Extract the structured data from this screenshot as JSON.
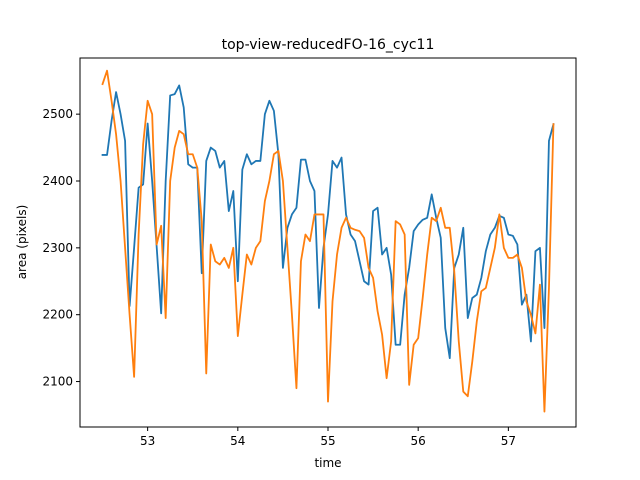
{
  "chart_data": {
    "type": "line",
    "title": "top-view-reducedFO-16_cyc11",
    "xlabel": "time",
    "ylabel": "area (pixels)",
    "xlim": [
      52.25,
      57.75
    ],
    "ylim": [
      2032,
      2584
    ],
    "xticks": [
      53,
      54,
      55,
      56,
      57
    ],
    "yticks": [
      2100,
      2200,
      2300,
      2400,
      2500
    ],
    "grid": false,
    "legend": "none",
    "series": [
      {
        "color": "#1f77b4",
        "points": [
          [
            52.5,
            2439
          ],
          [
            52.55,
            2439
          ],
          [
            52.6,
            2490
          ],
          [
            52.65,
            2533
          ],
          [
            52.7,
            2500
          ],
          [
            52.75,
            2460
          ],
          [
            52.8,
            2213
          ],
          [
            52.85,
            2300
          ],
          [
            52.9,
            2390
          ],
          [
            52.95,
            2395
          ],
          [
            53.0,
            2486
          ],
          [
            53.05,
            2400
          ],
          [
            53.1,
            2302
          ],
          [
            53.15,
            2202
          ],
          [
            53.2,
            2400
          ],
          [
            53.25,
            2528
          ],
          [
            53.3,
            2530
          ],
          [
            53.35,
            2543
          ],
          [
            53.4,
            2510
          ],
          [
            53.45,
            2425
          ],
          [
            53.5,
            2420
          ],
          [
            53.55,
            2420
          ],
          [
            53.6,
            2262
          ],
          [
            53.65,
            2430
          ],
          [
            53.7,
            2450
          ],
          [
            53.75,
            2445
          ],
          [
            53.8,
            2420
          ],
          [
            53.85,
            2430
          ],
          [
            53.9,
            2355
          ],
          [
            53.95,
            2385
          ],
          [
            54.0,
            2250
          ],
          [
            54.05,
            2417
          ],
          [
            54.1,
            2440
          ],
          [
            54.15,
            2425
          ],
          [
            54.2,
            2430
          ],
          [
            54.25,
            2430
          ],
          [
            54.3,
            2500
          ],
          [
            54.35,
            2520
          ],
          [
            54.4,
            2505
          ],
          [
            54.45,
            2440
          ],
          [
            54.5,
            2270
          ],
          [
            54.55,
            2330
          ],
          [
            54.6,
            2350
          ],
          [
            54.65,
            2360
          ],
          [
            54.7,
            2432
          ],
          [
            54.75,
            2432
          ],
          [
            54.8,
            2400
          ],
          [
            54.85,
            2385
          ],
          [
            54.9,
            2210
          ],
          [
            54.95,
            2300
          ],
          [
            55.0,
            2350
          ],
          [
            55.05,
            2430
          ],
          [
            55.1,
            2420
          ],
          [
            55.15,
            2435
          ],
          [
            55.2,
            2350
          ],
          [
            55.25,
            2320
          ],
          [
            55.3,
            2310
          ],
          [
            55.35,
            2280
          ],
          [
            55.4,
            2250
          ],
          [
            55.45,
            2245
          ],
          [
            55.5,
            2355
          ],
          [
            55.55,
            2360
          ],
          [
            55.6,
            2290
          ],
          [
            55.65,
            2300
          ],
          [
            55.7,
            2260
          ],
          [
            55.75,
            2155
          ],
          [
            55.8,
            2155
          ],
          [
            55.85,
            2230
          ],
          [
            55.9,
            2270
          ],
          [
            55.95,
            2325
          ],
          [
            56.0,
            2335
          ],
          [
            56.05,
            2342
          ],
          [
            56.1,
            2345
          ],
          [
            56.15,
            2380
          ],
          [
            56.2,
            2345
          ],
          [
            56.25,
            2315
          ],
          [
            56.3,
            2180
          ],
          [
            56.35,
            2135
          ],
          [
            56.4,
            2270
          ],
          [
            56.45,
            2290
          ],
          [
            56.5,
            2330
          ],
          [
            56.55,
            2195
          ],
          [
            56.6,
            2225
          ],
          [
            56.65,
            2230
          ],
          [
            56.7,
            2255
          ],
          [
            56.75,
            2295
          ],
          [
            56.8,
            2320
          ],
          [
            56.85,
            2330
          ],
          [
            56.9,
            2348
          ],
          [
            56.95,
            2345
          ],
          [
            57.0,
            2320
          ],
          [
            57.05,
            2318
          ],
          [
            57.1,
            2305
          ],
          [
            57.15,
            2215
          ],
          [
            57.2,
            2230
          ],
          [
            57.25,
            2160
          ],
          [
            57.3,
            2295
          ],
          [
            57.35,
            2300
          ],
          [
            57.4,
            2180
          ],
          [
            57.45,
            2460
          ],
          [
            57.5,
            2485
          ]
        ]
      },
      {
        "color": "#ff7f0e",
        "points": [
          [
            52.5,
            2545
          ],
          [
            52.55,
            2565
          ],
          [
            52.6,
            2520
          ],
          [
            52.65,
            2470
          ],
          [
            52.7,
            2400
          ],
          [
            52.75,
            2300
          ],
          [
            52.8,
            2200
          ],
          [
            52.85,
            2107
          ],
          [
            52.9,
            2320
          ],
          [
            52.95,
            2455
          ],
          [
            53.0,
            2520
          ],
          [
            53.05,
            2500
          ],
          [
            53.1,
            2305
          ],
          [
            53.15,
            2333
          ],
          [
            53.2,
            2195
          ],
          [
            53.25,
            2400
          ],
          [
            53.3,
            2450
          ],
          [
            53.35,
            2475
          ],
          [
            53.4,
            2470
          ],
          [
            53.45,
            2440
          ],
          [
            53.5,
            2440
          ],
          [
            53.55,
            2420
          ],
          [
            53.6,
            2340
          ],
          [
            53.65,
            2112
          ],
          [
            53.7,
            2305
          ],
          [
            53.75,
            2280
          ],
          [
            53.8,
            2275
          ],
          [
            53.85,
            2285
          ],
          [
            53.9,
            2270
          ],
          [
            53.95,
            2300
          ],
          [
            54.0,
            2168
          ],
          [
            54.05,
            2230
          ],
          [
            54.1,
            2290
          ],
          [
            54.15,
            2275
          ],
          [
            54.2,
            2300
          ],
          [
            54.25,
            2310
          ],
          [
            54.3,
            2370
          ],
          [
            54.35,
            2400
          ],
          [
            54.4,
            2440
          ],
          [
            54.45,
            2445
          ],
          [
            54.5,
            2400
          ],
          [
            54.55,
            2300
          ],
          [
            54.6,
            2200
          ],
          [
            54.65,
            2090
          ],
          [
            54.7,
            2280
          ],
          [
            54.75,
            2320
          ],
          [
            54.8,
            2310
          ],
          [
            54.85,
            2350
          ],
          [
            54.9,
            2350
          ],
          [
            54.95,
            2350
          ],
          [
            55.0,
            2070
          ],
          [
            55.05,
            2220
          ],
          [
            55.1,
            2290
          ],
          [
            55.15,
            2330
          ],
          [
            55.2,
            2345
          ],
          [
            55.25,
            2330
          ],
          [
            55.3,
            2327
          ],
          [
            55.35,
            2325
          ],
          [
            55.4,
            2315
          ],
          [
            55.45,
            2270
          ],
          [
            55.5,
            2255
          ],
          [
            55.55,
            2205
          ],
          [
            55.6,
            2170
          ],
          [
            55.65,
            2105
          ],
          [
            55.7,
            2160
          ],
          [
            55.75,
            2340
          ],
          [
            55.8,
            2335
          ],
          [
            55.85,
            2320
          ],
          [
            55.9,
            2095
          ],
          [
            55.95,
            2155
          ],
          [
            56.0,
            2165
          ],
          [
            56.05,
            2225
          ],
          [
            56.1,
            2290
          ],
          [
            56.15,
            2345
          ],
          [
            56.2,
            2340
          ],
          [
            56.25,
            2360
          ],
          [
            56.3,
            2330
          ],
          [
            56.35,
            2330
          ],
          [
            56.4,
            2265
          ],
          [
            56.45,
            2160
          ],
          [
            56.5,
            2085
          ],
          [
            56.55,
            2078
          ],
          [
            56.6,
            2130
          ],
          [
            56.65,
            2190
          ],
          [
            56.7,
            2235
          ],
          [
            56.75,
            2240
          ],
          [
            56.8,
            2270
          ],
          [
            56.85,
            2300
          ],
          [
            56.9,
            2350
          ],
          [
            56.95,
            2300
          ],
          [
            57.0,
            2285
          ],
          [
            57.05,
            2285
          ],
          [
            57.1,
            2290
          ],
          [
            57.15,
            2270
          ],
          [
            57.2,
            2220
          ],
          [
            57.25,
            2200
          ],
          [
            57.3,
            2172
          ],
          [
            57.35,
            2245
          ],
          [
            57.4,
            2055
          ],
          [
            57.45,
            2240
          ],
          [
            57.5,
            2485
          ]
        ]
      }
    ]
  }
}
